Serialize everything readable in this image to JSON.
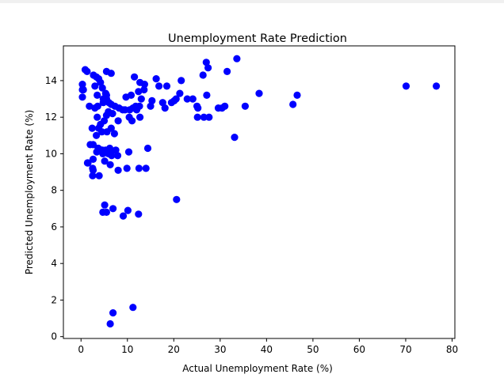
{
  "chart_data": {
    "type": "scatter",
    "title": "Unemployment Rate Prediction",
    "xlabel": "Actual Unemployment Rate (%)",
    "ylabel": "Predicted Unemployment Rate (%)",
    "xlim": [
      -3.8,
      80.6
    ],
    "ylim": [
      -0.1,
      15.9
    ],
    "xticks": [
      0,
      10,
      20,
      30,
      40,
      50,
      60,
      70,
      80
    ],
    "yticks": [
      0,
      2,
      4,
      6,
      8,
      10,
      12,
      14
    ],
    "grid": false,
    "marker_color": "#0000ff",
    "series": [
      {
        "x": [
          0.9,
          1.3,
          0.3,
          0.3,
          0.5,
          0.3,
          1.8,
          2.7,
          3.3,
          3.8,
          4.2,
          4.6,
          5.3,
          5.5,
          3.0,
          3.5,
          4.8,
          5.5,
          6.0,
          6.5,
          7.3,
          8.2,
          9.0,
          5.5,
          6.5,
          3.0,
          3.6,
          4.8,
          5.9,
          6.8,
          3.5,
          4.2,
          5.0,
          5.5,
          6.5,
          3.8,
          2.4,
          4.5,
          5.6,
          7.2,
          8.0,
          3.3,
          2.0,
          2.6,
          3.7,
          4.4,
          5.3,
          6.3,
          7.5,
          2.6,
          3.4,
          4.7,
          5.4,
          6.6,
          7.9,
          1.4,
          2.5,
          3.7,
          4.6,
          5.3,
          5.9,
          1.5,
          2.6,
          3.9,
          5.1,
          6.2,
          6.3,
          2.5,
          8.0,
          9.9,
          12.5,
          14.0,
          10.3,
          14.4,
          10.4,
          12.7,
          11.2,
          11.0,
          12.0,
          9.5,
          10.5,
          11.8,
          12.6,
          9.7,
          10.8,
          12.4,
          13.6,
          15.3,
          15.0,
          13.0,
          11.5,
          12.7,
          13.7,
          16.8,
          16.2,
          18.5,
          17.6,
          18.1,
          20.5,
          21.3,
          20.1,
          19.5,
          21.6,
          22.9,
          24.1,
          25.2,
          26.5,
          27.1,
          27.4,
          27.0,
          25.0,
          25.1,
          27.6,
          26.3,
          30.4,
          31.0,
          29.6,
          31.5,
          33.1,
          33.6,
          38.4,
          35.4,
          45.7,
          46.6,
          70.1,
          76.6,
          4.7,
          5.5,
          5.1,
          6.9,
          10.1,
          9.1,
          12.4,
          20.6,
          6.3,
          6.9,
          11.2
        ],
        "y": [
          14.6,
          14.5,
          13.8,
          13.5,
          13.5,
          13.1,
          12.6,
          14.3,
          14.2,
          14.1,
          13.9,
          13.6,
          13.3,
          13.2,
          13.7,
          13.2,
          13.0,
          13.0,
          12.8,
          12.7,
          12.6,
          12.5,
          12.4,
          14.5,
          14.4,
          12.5,
          12.6,
          12.8,
          12.3,
          12.2,
          12.0,
          11.6,
          11.8,
          12.1,
          11.4,
          11.4,
          11.4,
          11.2,
          11.2,
          11.1,
          11.8,
          11.0,
          10.5,
          10.5,
          10.3,
          10.2,
          10.2,
          10.1,
          10.2,
          9.7,
          10.1,
          10.0,
          10.1,
          9.9,
          9.9,
          9.5,
          8.8,
          10.3,
          10.2,
          10.1,
          10.0,
          9.5,
          9.1,
          8.8,
          9.6,
          10.3,
          9.4,
          9.2,
          9.1,
          9.2,
          9.2,
          9.2,
          10.1,
          10.3,
          12.0,
          12.0,
          12.5,
          11.8,
          12.4,
          12.4,
          12.4,
          12.6,
          12.6,
          13.1,
          13.2,
          13.4,
          13.5,
          12.9,
          12.6,
          13.0,
          14.2,
          13.9,
          13.8,
          13.7,
          14.1,
          13.7,
          12.8,
          12.5,
          13.0,
          13.3,
          12.9,
          12.8,
          14.0,
          13.0,
          13.0,
          12.5,
          12.0,
          13.2,
          14.7,
          15.0,
          12.6,
          12.0,
          12.0,
          14.3,
          12.5,
          12.6,
          12.5,
          14.5,
          10.9,
          15.2,
          13.3,
          12.6,
          12.7,
          13.2,
          13.7,
          13.7,
          6.8,
          6.8,
          7.2,
          7.0,
          6.9,
          6.6,
          6.7,
          7.5,
          0.7,
          1.3,
          1.6
        ]
      }
    ]
  }
}
